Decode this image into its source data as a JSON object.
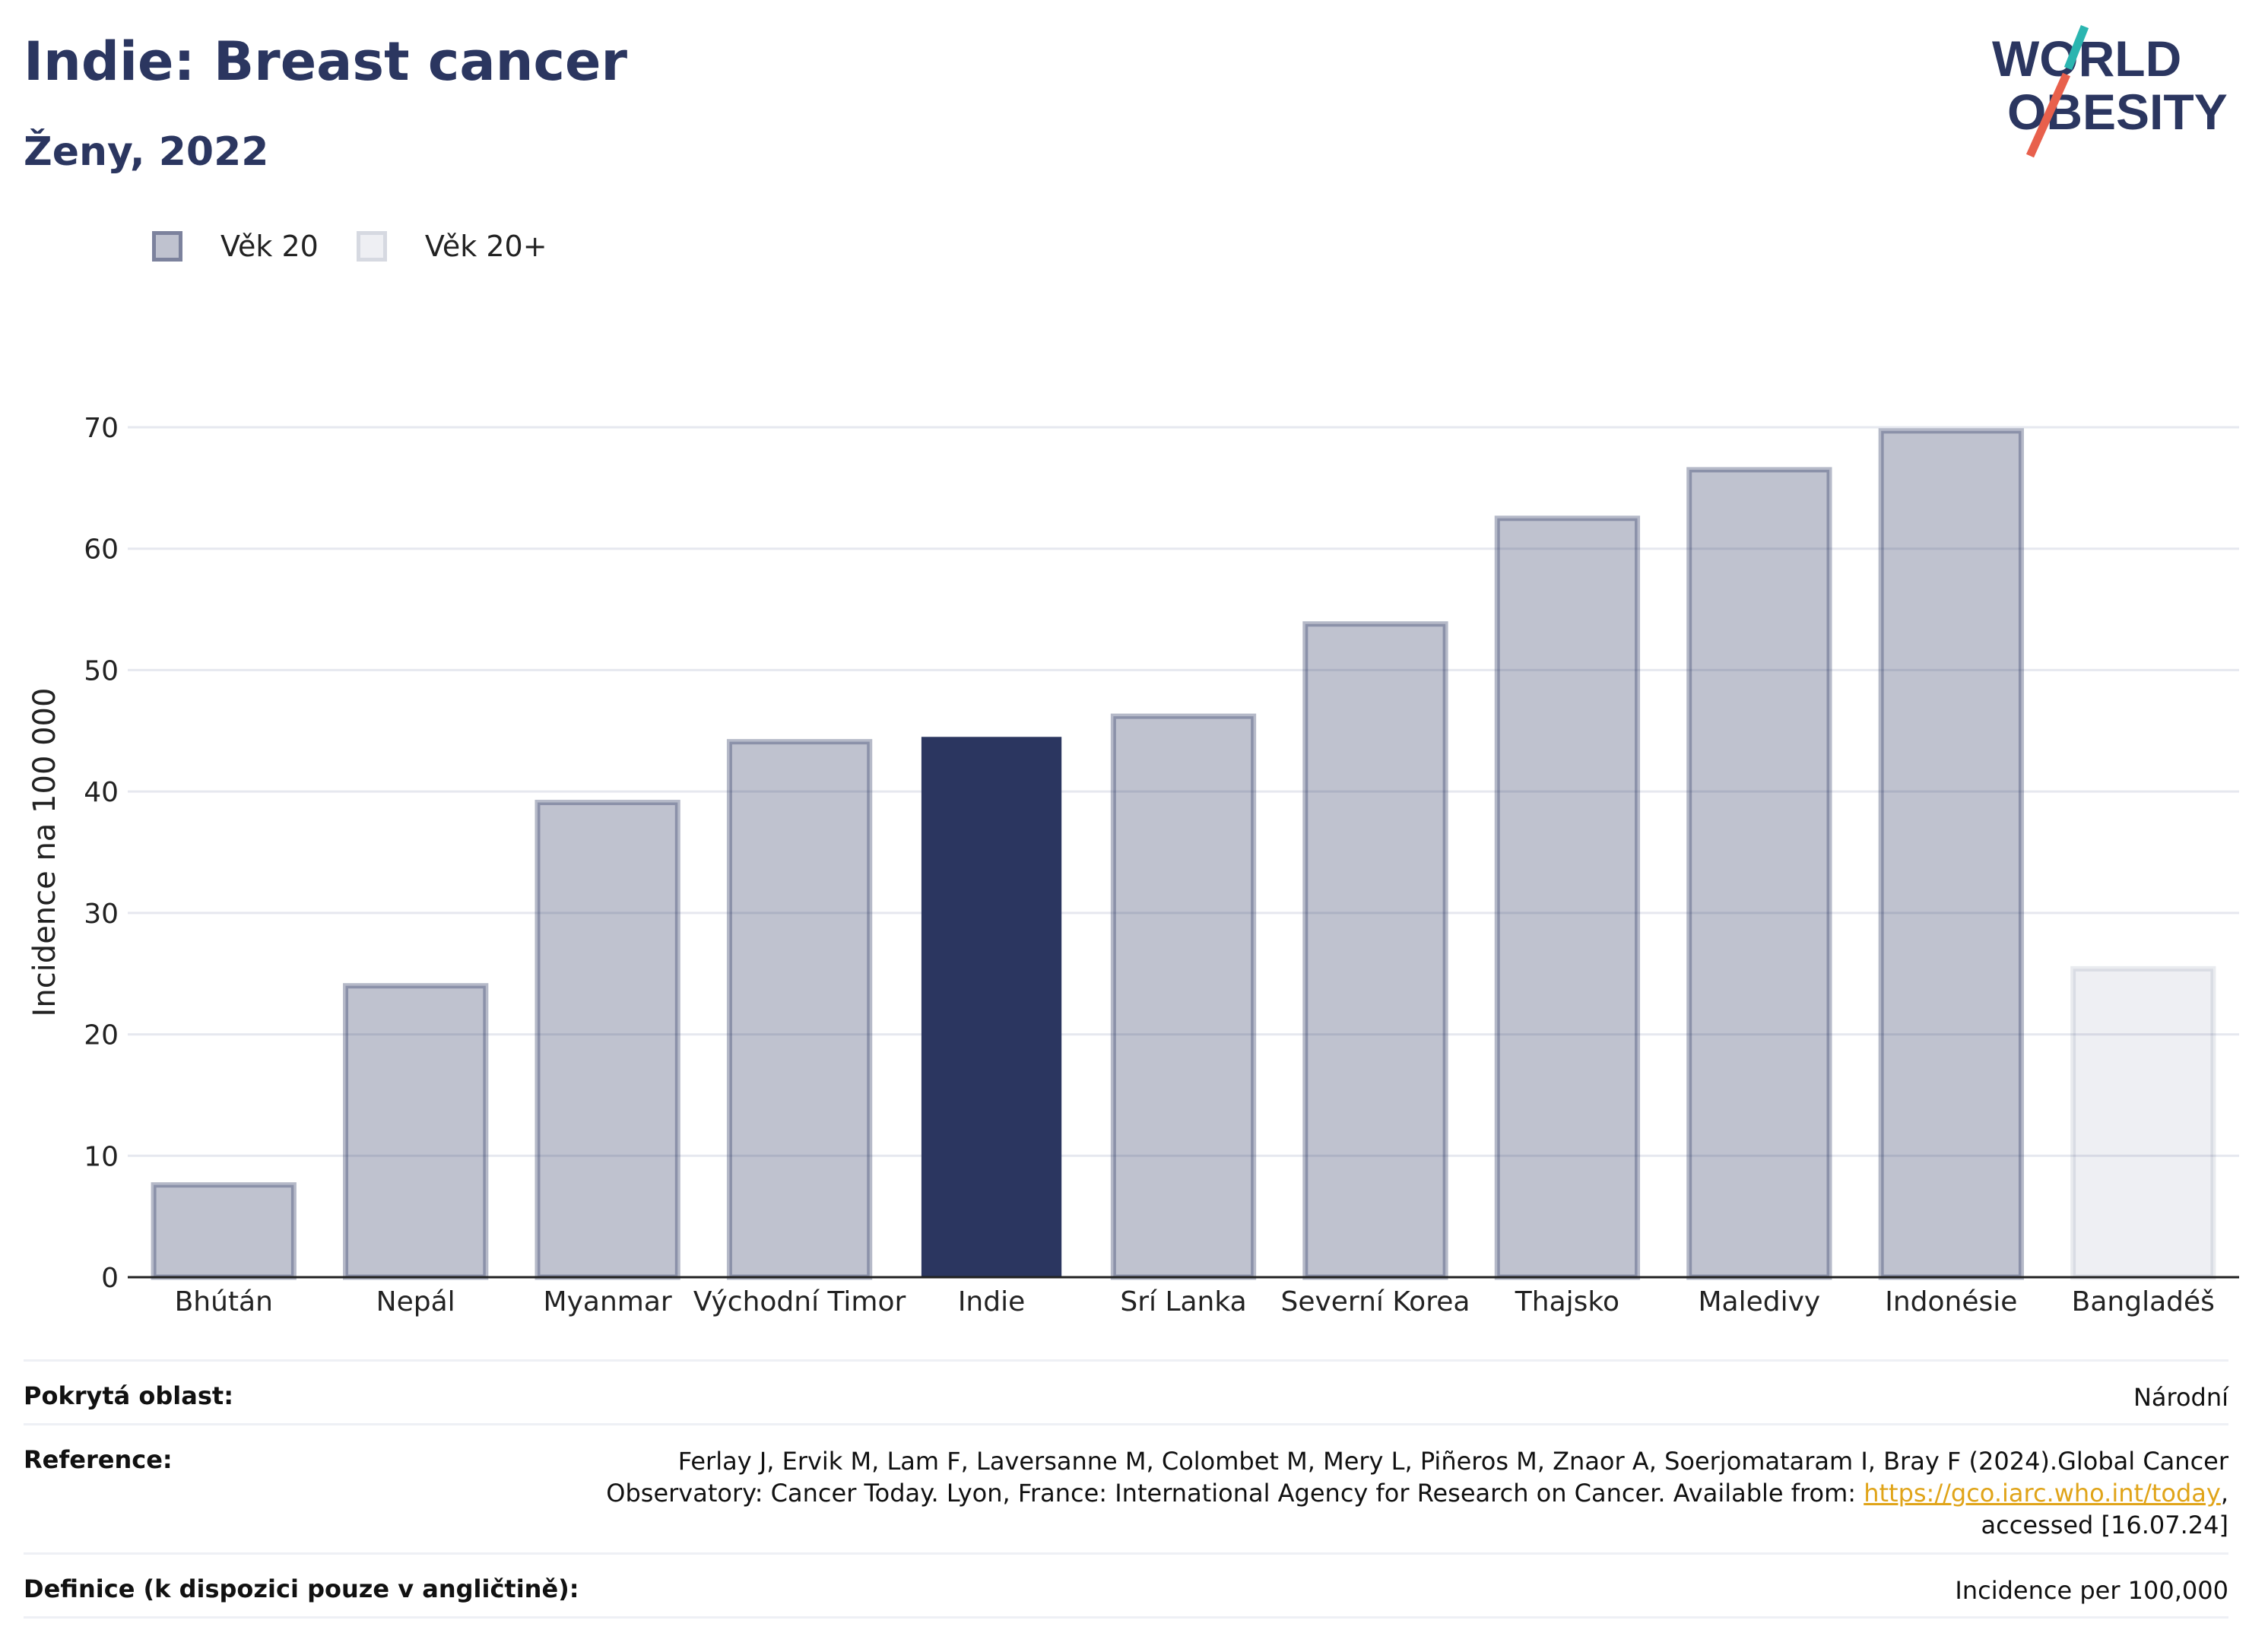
{
  "header": {
    "title": "Indie: Breast cancer",
    "subtitle": "Ženy, 2022"
  },
  "logo": {
    "line1": "WORLD",
    "line2": "OBESITY",
    "text_color": "#2b3660",
    "slash_colors": [
      "#2bb5b0",
      "#e8604c"
    ]
  },
  "legend": {
    "items": [
      {
        "label": "Věk 20",
        "color": "#2b3660",
        "opacity": 0.3
      },
      {
        "label": "Věk 20+",
        "color": "#2b3660",
        "opacity": 0.08
      }
    ]
  },
  "chart_data": {
    "type": "bar",
    "ylabel": "Incidence na 100 000",
    "ylim": [
      0,
      70
    ],
    "yticks": [
      0,
      10,
      20,
      30,
      40,
      50,
      60,
      70
    ],
    "grid": true,
    "legend_position": "top-left",
    "categories": [
      "Bhútán",
      "Nepál",
      "Myanmar",
      "Východní Timor",
      "Indie",
      "Srí Lanka",
      "Severní Korea",
      "Thajsko",
      "Maledivy",
      "Indonésie",
      "Bangladéš"
    ],
    "values": [
      7.6,
      24.0,
      39.1,
      44.1,
      44.5,
      46.2,
      53.8,
      62.5,
      66.5,
      69.7,
      25.4
    ],
    "series_of_bar": [
      "Věk 20",
      "Věk 20",
      "Věk 20",
      "Věk 20",
      "highlight",
      "Věk 20",
      "Věk 20",
      "Věk 20",
      "Věk 20",
      "Věk 20",
      "Věk 20+"
    ],
    "colors": {
      "base": "#2b3660",
      "highlight": "#2b3660"
    }
  },
  "footer": {
    "coverage_label": "Pokrytá oblast:",
    "coverage_value": "Národní",
    "reference_label": "Reference:",
    "reference_line1": "Ferlay J, Ervik M, Lam F, Laversanne M, Colombet M, Mery L, Piñeros M, Znaor A, Soerjomataram I, Bray F (2024).Global Cancer",
    "reference_line2_pre": "Observatory: Cancer Today. Lyon, France: International Agency for Research on Cancer. Available from: ",
    "reference_link": "https://gco.iarc.who.int/today",
    "reference_line2_post": ",",
    "reference_line3": "accessed [16.07.24]",
    "definition_label": "Definice (k dispozici pouze v angličtině):",
    "definition_value": "Incidence per 100,000",
    "link_color": "#e0a419"
  }
}
